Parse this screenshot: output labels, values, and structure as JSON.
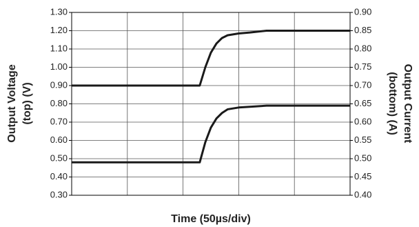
{
  "chart_data": {
    "type": "line",
    "y_label": [
      "Output Voltage",
      "(top) (V)"
    ],
    "y2_label": [
      "Output Current",
      "(bottom) (A)"
    ],
    "x_label": "Time (50µs/div)",
    "x": [
      0,
      2.3,
      2.4,
      2.5,
      2.6,
      2.7,
      2.8,
      3.0,
      3.2,
      3.5,
      5
    ],
    "xlim": [
      0,
      5
    ],
    "ylim": [
      0.3,
      1.3
    ],
    "yticks": [
      {
        "value": 0.3,
        "label": "0.30"
      },
      {
        "value": 0.4,
        "label": "0.40"
      },
      {
        "value": 0.5,
        "label": "0.50"
      },
      {
        "value": 0.6,
        "label": "0.60"
      },
      {
        "value": 0.7,
        "label": "0.70"
      },
      {
        "value": 0.8,
        "label": "0.80"
      },
      {
        "value": 0.9,
        "label": "0.90"
      },
      {
        "value": 1.0,
        "label": "1.00"
      },
      {
        "value": 1.1,
        "label": "1.10"
      },
      {
        "value": 1.2,
        "label": "1.20"
      },
      {
        "value": 1.3,
        "label": "1.30"
      }
    ],
    "y2lim": [
      0.4,
      0.9
    ],
    "y2ticks": [
      {
        "value": 0.4,
        "label": "0.40"
      },
      {
        "value": 0.45,
        "label": "0.45"
      },
      {
        "value": 0.5,
        "label": "0.50"
      },
      {
        "value": 0.55,
        "label": "0.55"
      },
      {
        "value": 0.6,
        "label": "0.60"
      },
      {
        "value": 0.65,
        "label": "0.65"
      },
      {
        "value": 0.7,
        "label": "0.70"
      },
      {
        "value": 0.75,
        "label": "0.75"
      },
      {
        "value": 0.8,
        "label": "0.80"
      },
      {
        "value": 0.85,
        "label": "0.85"
      },
      {
        "value": 0.9,
        "label": "0.90"
      }
    ],
    "grid": true,
    "series": [
      {
        "color": "#1a1a1a",
        "values": [
          0.9,
          0.9,
          1.0,
          1.08,
          1.13,
          1.16,
          1.175,
          1.185,
          1.19,
          1.2,
          1.2
        ]
      },
      {
        "color": "#1a1a1a",
        "axis": "y2",
        "values": [
          0.49,
          0.49,
          0.545,
          0.585,
          0.61,
          0.625,
          0.635,
          0.64,
          0.642,
          0.645,
          0.645
        ]
      }
    ]
  }
}
